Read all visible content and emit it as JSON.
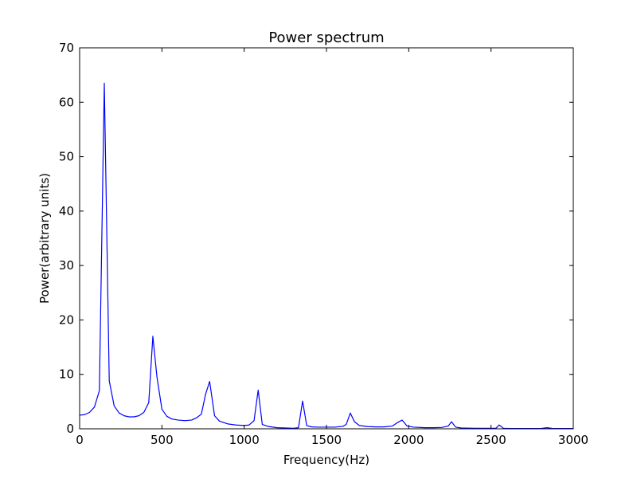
{
  "chart_data": {
    "type": "line",
    "title": "Power spectrum",
    "xlabel": "Frequency(Hz)",
    "ylabel": "Power(arbitrary units)",
    "xlim": [
      0,
      3000
    ],
    "ylim": [
      0,
      70
    ],
    "xticks": [
      0,
      500,
      1000,
      1500,
      2000,
      2500,
      3000
    ],
    "yticks": [
      0,
      10,
      20,
      30,
      40,
      50,
      60,
      70
    ],
    "grid": false,
    "series": [
      {
        "color": "#0000ff",
        "x": [
          0,
          30,
          60,
          90,
          120,
          150,
          180,
          210,
          240,
          270,
          300,
          330,
          360,
          390,
          420,
          445,
          470,
          500,
          530,
          560,
          600,
          640,
          680,
          710,
          740,
          765,
          790,
          820,
          850,
          900,
          950,
          1000,
          1030,
          1060,
          1085,
          1110,
          1150,
          1200,
          1250,
          1300,
          1330,
          1355,
          1380,
          1410,
          1450,
          1500,
          1550,
          1600,
          1620,
          1645,
          1670,
          1700,
          1750,
          1800,
          1850,
          1900,
          1935,
          1960,
          1990,
          2030,
          2100,
          2150,
          2200,
          2240,
          2260,
          2285,
          2320,
          2400,
          2450,
          2500,
          2530,
          2550,
          2575,
          2620,
          2700,
          2800,
          2840,
          2880,
          2950,
          3000
        ],
        "values": [
          2.5,
          2.6,
          3.0,
          4.0,
          7.0,
          63.5,
          8.8,
          4.2,
          2.9,
          2.4,
          2.2,
          2.2,
          2.4,
          3.0,
          4.8,
          17.0,
          9.5,
          3.6,
          2.3,
          1.8,
          1.6,
          1.5,
          1.6,
          2.0,
          2.7,
          6.3,
          8.7,
          2.4,
          1.4,
          0.9,
          0.7,
          0.6,
          0.7,
          1.5,
          7.1,
          0.8,
          0.4,
          0.2,
          0.15,
          0.1,
          0.2,
          5.1,
          0.6,
          0.35,
          0.3,
          0.3,
          0.3,
          0.45,
          0.8,
          2.9,
          1.3,
          0.6,
          0.4,
          0.35,
          0.35,
          0.5,
          1.2,
          1.6,
          0.5,
          0.3,
          0.2,
          0.2,
          0.25,
          0.5,
          1.3,
          0.3,
          0.15,
          0.1,
          0.1,
          0.1,
          0.1,
          0.7,
          0.1,
          0.05,
          0.05,
          0.05,
          0.2,
          0.05,
          0.05,
          0.05
        ]
      }
    ]
  }
}
